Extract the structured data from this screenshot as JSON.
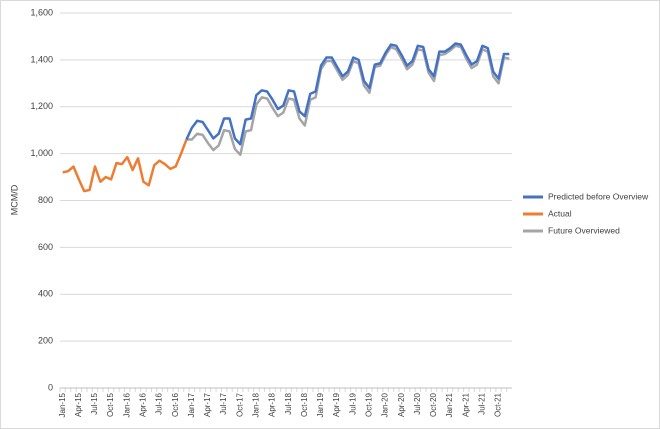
{
  "chart_data": {
    "type": "line",
    "y_label": "MCM/D",
    "categories": [
      "Jan-15",
      null,
      null,
      "Apr-15",
      null,
      null,
      "Jul-15",
      null,
      null,
      "Oct-15",
      null,
      null,
      "Jan-16",
      null,
      null,
      "Apr-16",
      null,
      null,
      "Jul-16",
      null,
      null,
      "Oct-16",
      null,
      null,
      "Jan-17",
      null,
      null,
      "Apr-17",
      null,
      null,
      "Jul-17",
      null,
      null,
      "Oct-17",
      null,
      null,
      "Jan-18",
      null,
      null,
      "Apr-18",
      null,
      null,
      "Jul-18",
      null,
      null,
      "Oct-18",
      null,
      null,
      "Jan-19",
      null,
      null,
      "Apr-19",
      null,
      null,
      "Jul-19",
      null,
      null,
      "Oct-19",
      null,
      null,
      "Jan-20",
      null,
      null,
      "Apr-20",
      null,
      null,
      "Jul-20",
      null,
      null,
      "Oct-20",
      null,
      null,
      "Jan-21",
      null,
      null,
      "Apr-21",
      null,
      null,
      "Jul-21",
      null,
      null,
      "Oct-21",
      null,
      null
    ],
    "ylim": [
      0,
      1600
    ],
    "yticks": [
      0,
      200,
      400,
      600,
      800,
      {
        "value": 1000,
        "label": "1,000"
      },
      {
        "value": 1200,
        "label": "1,200"
      },
      {
        "value": 1400,
        "label": "1,400"
      },
      {
        "value": 1600,
        "label": "1,600"
      }
    ],
    "grid": true,
    "legend": "right",
    "series": [
      {
        "name": "Predicted before Overview",
        "color": "#4472c4",
        "values": [
          null,
          null,
          null,
          null,
          null,
          null,
          null,
          null,
          null,
          null,
          null,
          null,
          null,
          null,
          null,
          null,
          null,
          null,
          null,
          null,
          null,
          null,
          null,
          1060,
          1110,
          1140,
          1135,
          1100,
          1065,
          1085,
          1150,
          1150,
          1065,
          1040,
          1145,
          1150,
          1250,
          1270,
          1265,
          1230,
          1190,
          1205,
          1270,
          1265,
          1180,
          1160,
          1255,
          1265,
          1375,
          1410,
          1410,
          1370,
          1330,
          1350,
          1410,
          1400,
          1310,
          1280,
          1380,
          1385,
          1430,
          1465,
          1460,
          1420,
          1375,
          1395,
          1460,
          1455,
          1360,
          1330,
          1435,
          1435,
          1450,
          1470,
          1465,
          1420,
          1380,
          1395,
          1460,
          1450,
          1350,
          1320,
          1425,
          1425
        ]
      },
      {
        "name": "Actual",
        "color": "#ed7d31",
        "values": [
          920,
          925,
          945,
          890,
          840,
          845,
          945,
          880,
          900,
          890,
          960,
          955,
          985,
          930,
          980,
          880,
          865,
          950,
          970,
          955,
          935,
          945,
          1000,
          1060,
          null,
          null,
          null,
          null,
          null,
          null,
          null,
          null,
          null,
          null,
          null,
          null,
          null,
          null,
          null,
          null,
          null,
          null,
          null,
          null,
          null,
          null,
          null,
          null,
          null,
          null,
          null,
          null,
          null,
          null,
          null,
          null,
          null,
          null,
          null,
          null,
          null,
          null,
          null,
          null,
          null,
          null,
          null,
          null,
          null,
          null,
          null,
          null,
          null,
          null,
          null,
          null,
          null,
          null,
          null,
          null,
          null,
          null,
          null,
          null
        ]
      },
      {
        "name": "Future Overviewed",
        "color": "#a5a5a5",
        "values": [
          null,
          null,
          null,
          null,
          null,
          null,
          null,
          null,
          null,
          null,
          null,
          null,
          null,
          null,
          null,
          null,
          null,
          null,
          null,
          null,
          null,
          null,
          null,
          1060,
          1060,
          1085,
          1080,
          1045,
          1015,
          1035,
          1100,
          1095,
          1020,
          995,
          1095,
          1100,
          1210,
          1240,
          1235,
          1195,
          1160,
          1175,
          1235,
          1230,
          1150,
          1120,
          1230,
          1240,
          1360,
          1395,
          1395,
          1355,
          1315,
          1335,
          1395,
          1385,
          1290,
          1260,
          1370,
          1375,
          1420,
          1455,
          1445,
          1405,
          1360,
          1380,
          1445,
          1440,
          1345,
          1310,
          1420,
          1425,
          1440,
          1460,
          1455,
          1405,
          1365,
          1380,
          1445,
          1435,
          1330,
          1300,
          1410,
          1405
        ]
      }
    ]
  }
}
